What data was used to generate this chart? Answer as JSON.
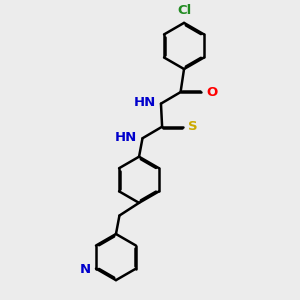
{
  "background_color": "#ececec",
  "bond_color": "#000000",
  "bond_width": 1.8,
  "atom_colors": {
    "Cl": "#228B22",
    "O": "#ff0000",
    "N": "#0000cc",
    "S": "#ccaa00",
    "C": "#000000"
  },
  "font_size": 9.5,
  "fig_width": 3.0,
  "fig_height": 3.0,
  "dpi": 100
}
